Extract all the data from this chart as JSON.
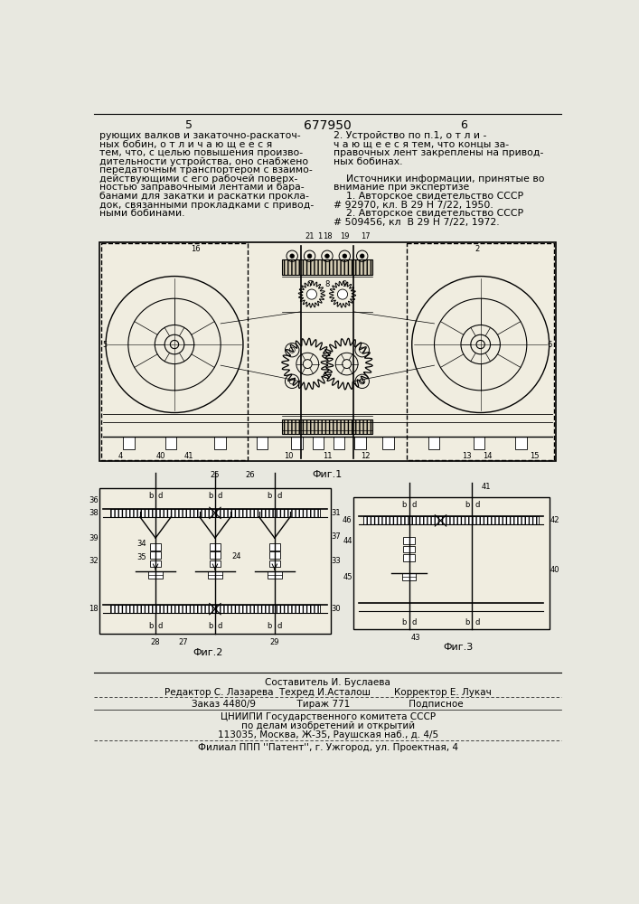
{
  "bg_color": "#e8e8e0",
  "page_color": "#f2f0ea",
  "title_number": "677950",
  "col_left_num": "5",
  "col_right_num": "6",
  "fig1_label": "Фиг.1",
  "fig2_label": "Фиг.2",
  "fig3_label": "Фиг.3",
  "text_col1_lines": [
    "рующих валков и закаточно-раскаточ-",
    "ных бобин, о т л и ч а ю щ е е с я",
    "тем, что, с целью повышения произво-",
    "дительности устройства, оно снабжено",
    "передаточным транспортером с взаимо-",
    "действующими с его рабочей поверх-",
    "ностью заправочными лентами и бара-",
    "банами для закатки и раскатки прокла-",
    "док, связанными прокладками с привод-",
    "ными бобинами."
  ],
  "text_col2_lines": [
    "2. Устройство по п.1, о т л и -",
    "ч а ю щ е е с я тем, что концы за-",
    "правочных лент закреплены на привод-",
    "ных бобинах.",
    "",
    "    Источники информации, принятые во",
    "внимание при экспертизе",
    "    1. Авторское свидетельство СССР",
    "# 92970, кл. В 29 Н 7/22, 1950.",
    "    2. Авторское свидетельство СССР",
    "# 509456, кл  В 29 Н 7/22, 1972."
  ],
  "footer_lines": [
    "Составитель И. Буслаева",
    "Редактор С. Лазарева  Техред И.Асталош        Корректор Е. Лукач",
    "Заказ 4480/9              Тираж 771                    Подписное",
    "ЦНИИПИ Государственного комитета СССР",
    "по делам изобретений и открытий",
    "113035, Москва, Ж-35, Раушская наб., д. 4/5",
    "Филиал ППП ''Патент'', г. Ужгород, ул. Проектная, 4"
  ]
}
